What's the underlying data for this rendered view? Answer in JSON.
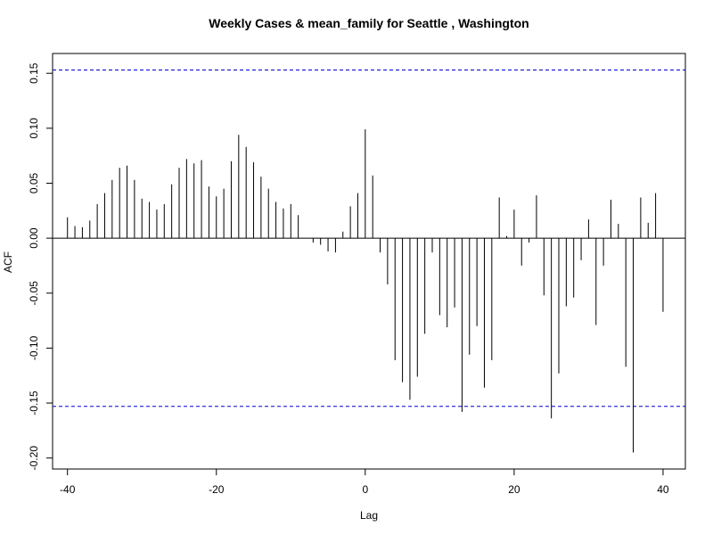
{
  "chart_data": {
    "type": "bar",
    "title": "Weekly Cases & mean_family for Seattle , Washington",
    "xlabel": "Lag",
    "ylabel": "ACF",
    "xlim": [
      -42,
      43
    ],
    "ylim": [
      -0.21,
      0.168
    ],
    "x_ticks": [
      -40,
      -20,
      0,
      20,
      40
    ],
    "x_tick_labels": [
      "-40",
      "-20",
      "0",
      "20",
      "40"
    ],
    "y_ticks": [
      -0.2,
      -0.15,
      -0.1,
      -0.05,
      0.0,
      0.05,
      0.1,
      0.15
    ],
    "y_tick_labels": [
      "-0.20",
      "-0.15",
      "-0.10",
      "-0.05",
      "0.00",
      "0.05",
      "0.10",
      "0.15"
    ],
    "confidence_band": 0.153,
    "colors": {
      "bars": "#000000",
      "confidence_line": "#0000cc",
      "zero_line": "#000000"
    },
    "x": [
      -40,
      -39,
      -38,
      -37,
      -36,
      -35,
      -34,
      -33,
      -32,
      -31,
      -30,
      -29,
      -28,
      -27,
      -26,
      -25,
      -24,
      -23,
      -22,
      -21,
      -20,
      -19,
      -18,
      -17,
      -16,
      -15,
      -14,
      -13,
      -12,
      -11,
      -10,
      -9,
      -8,
      -7,
      -6,
      -5,
      -4,
      -3,
      -2,
      -1,
      0,
      1,
      2,
      3,
      4,
      5,
      6,
      7,
      8,
      9,
      10,
      11,
      12,
      13,
      14,
      15,
      16,
      17,
      18,
      19,
      20,
      21,
      22,
      23,
      24,
      25,
      26,
      27,
      28,
      29,
      30,
      31,
      32,
      33,
      34,
      35,
      36,
      37,
      38,
      39,
      40
    ],
    "values": [
      0.019,
      0.011,
      0.01,
      0.016,
      0.031,
      0.041,
      0.053,
      0.064,
      0.066,
      0.053,
      0.036,
      0.033,
      0.026,
      0.031,
      0.049,
      0.064,
      0.072,
      0.068,
      0.071,
      0.047,
      0.038,
      0.045,
      0.07,
      0.094,
      0.083,
      0.069,
      0.056,
      0.045,
      0.033,
      0.027,
      0.031,
      0.021,
      0.0,
      -0.004,
      -0.006,
      -0.012,
      -0.013,
      0.006,
      0.029,
      0.041,
      0.099,
      0.057,
      -0.013,
      -0.042,
      -0.111,
      -0.131,
      -0.147,
      -0.126,
      -0.087,
      -0.013,
      -0.07,
      -0.081,
      -0.063,
      -0.158,
      -0.106,
      -0.08,
      -0.136,
      -0.111,
      0.037,
      0.002,
      0.026,
      -0.025,
      -0.004,
      0.039,
      -0.052,
      -0.164,
      -0.123,
      -0.062,
      -0.054,
      -0.02,
      0.017,
      -0.079,
      -0.025,
      0.035,
      0.013,
      -0.117,
      -0.195,
      0.037,
      0.014,
      0.041,
      -0.067
    ]
  }
}
